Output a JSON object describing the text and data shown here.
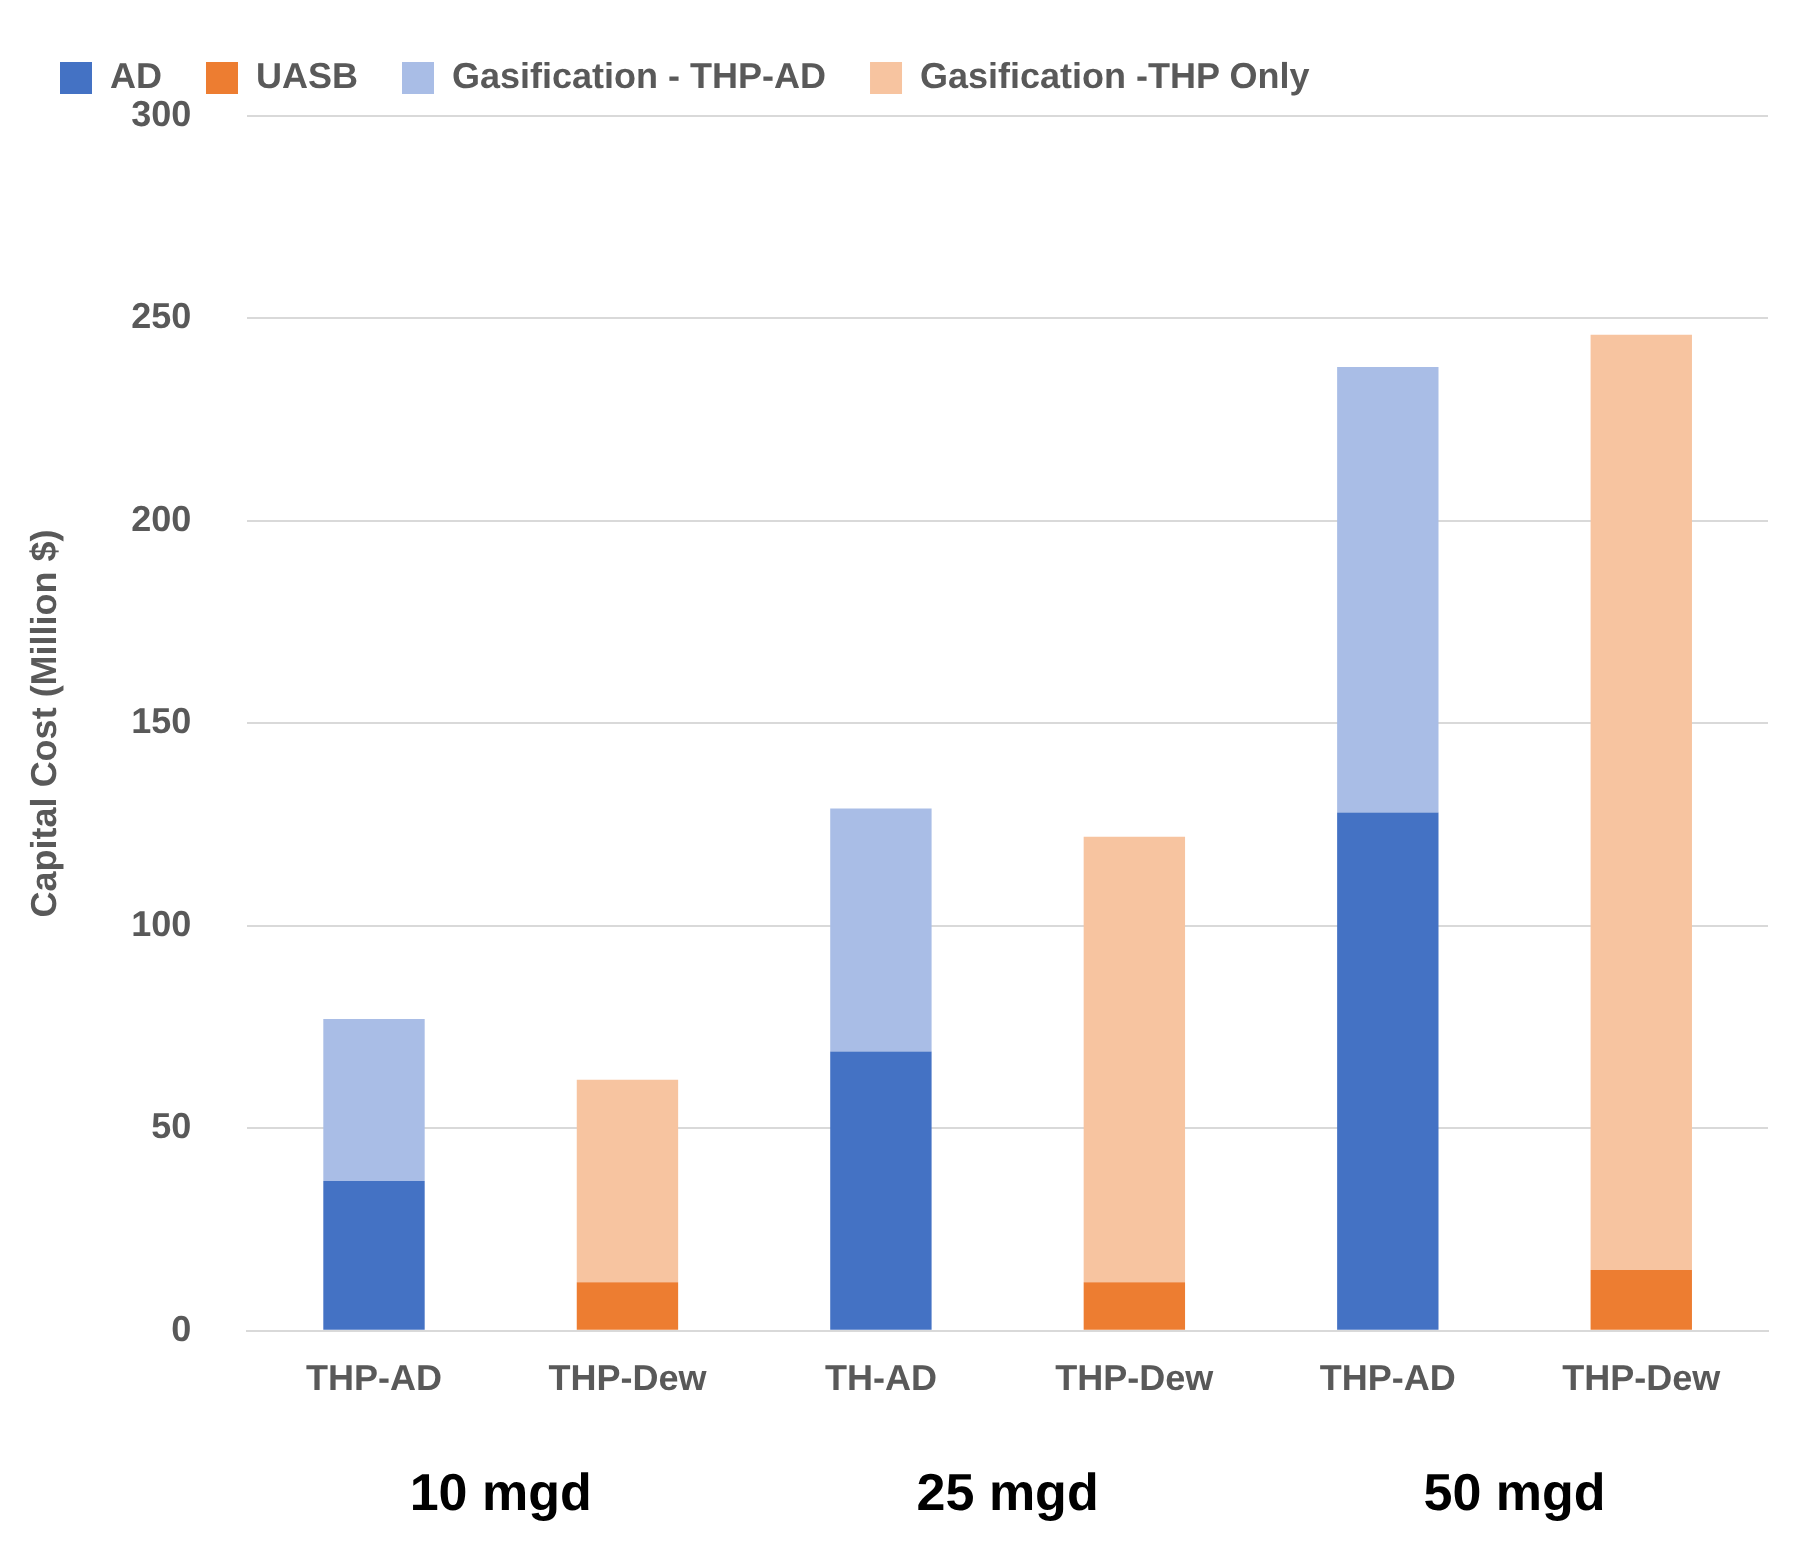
{
  "chart_data": {
    "type": "bar",
    "stacked": true,
    "ylabel": "Capital Cost (Million $)",
    "categories": [
      "THP-AD",
      "THP-Dew",
      "TH-AD",
      "THP-Dew",
      "THP-AD",
      "THP-Dew"
    ],
    "series": [
      {
        "name": "AD",
        "color": "#4472c4",
        "values": [
          37,
          null,
          69,
          null,
          128,
          null
        ]
      },
      {
        "name": "UASB",
        "color": "#ed7d31",
        "values": [
          null,
          12,
          null,
          12,
          null,
          15
        ]
      },
      {
        "name": "Gasification - THP-AD",
        "color": "#a9bde6",
        "values": [
          40,
          null,
          60,
          null,
          110,
          null
        ]
      },
      {
        "name": "Gasification -THP Only",
        "color": "#f7c4a0",
        "values": [
          null,
          50,
          null,
          110,
          null,
          231
        ]
      }
    ],
    "ylim": [
      0,
      300
    ],
    "yticks": [
      0,
      50,
      100,
      150,
      200,
      250,
      300
    ],
    "grid": "y",
    "legend": "top",
    "annotations": [
      "10 mgd",
      "25 mgd",
      "50 mgd"
    ]
  }
}
